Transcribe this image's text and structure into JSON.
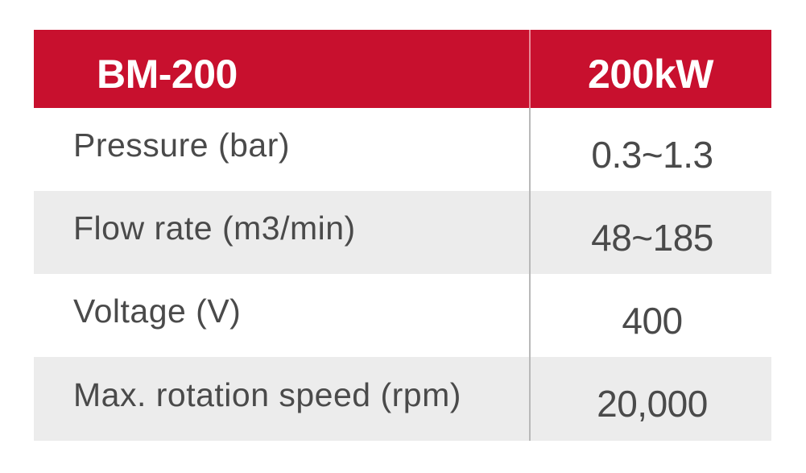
{
  "table": {
    "header": {
      "model": "BM-200",
      "power": "200kW"
    },
    "rows": [
      {
        "label": "Pressure (bar)",
        "value": "0.3~1.3"
      },
      {
        "label": "Flow rate (m3/min)",
        "value": "48~185"
      },
      {
        "label": "Voltage (V)",
        "value": "400"
      },
      {
        "label": "Max. rotation speed (rpm)",
        "value": "20,000"
      }
    ]
  },
  "colors": {
    "header_background": "#c8102e",
    "header_text": "#ffffff",
    "shaded_row": "#ececec",
    "body_text": "#4a4a4a",
    "divider": "#b9b9b9"
  }
}
